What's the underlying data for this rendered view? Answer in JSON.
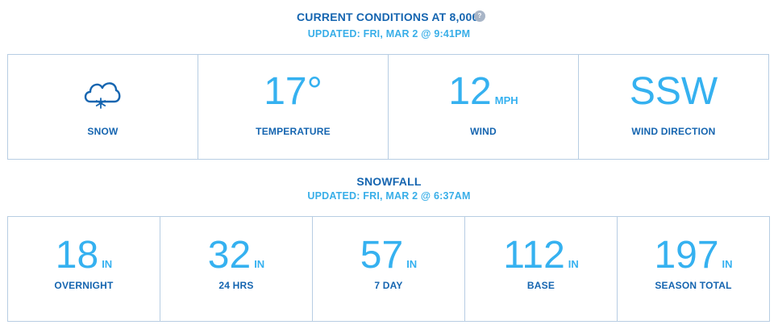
{
  "conditions": {
    "title": "CURRENT CONDITIONS AT 8,000'",
    "help": "?",
    "updated": "UPDATED: FRI, MAR 2 @ 9:41PM",
    "weather_label": "SNOW",
    "weather_icon": "snow-cloud-icon",
    "temperature": "17°",
    "temperature_label": "TEMPERATURE",
    "wind_value": "12",
    "wind_unit": "MPH",
    "wind_label": "WIND",
    "wind_direction": "SSW",
    "wind_direction_label": "WIND DIRECTION"
  },
  "snowfall": {
    "title": "SNOWFALL",
    "updated": "UPDATED: FRI, MAR 2 @ 6:37AM",
    "items": [
      {
        "value": "18",
        "unit": "IN",
        "label": "OVERNIGHT"
      },
      {
        "value": "32",
        "unit": "IN",
        "label": "24 HRS"
      },
      {
        "value": "57",
        "unit": "IN",
        "label": "7 DAY"
      },
      {
        "value": "112",
        "unit": "IN",
        "label": "BASE"
      },
      {
        "value": "197",
        "unit": "IN",
        "label": "SEASON TOTAL"
      }
    ]
  },
  "colors": {
    "primary_blue": "#1565b0",
    "accent_blue": "#35b1f0",
    "border": "#b7cde3"
  }
}
